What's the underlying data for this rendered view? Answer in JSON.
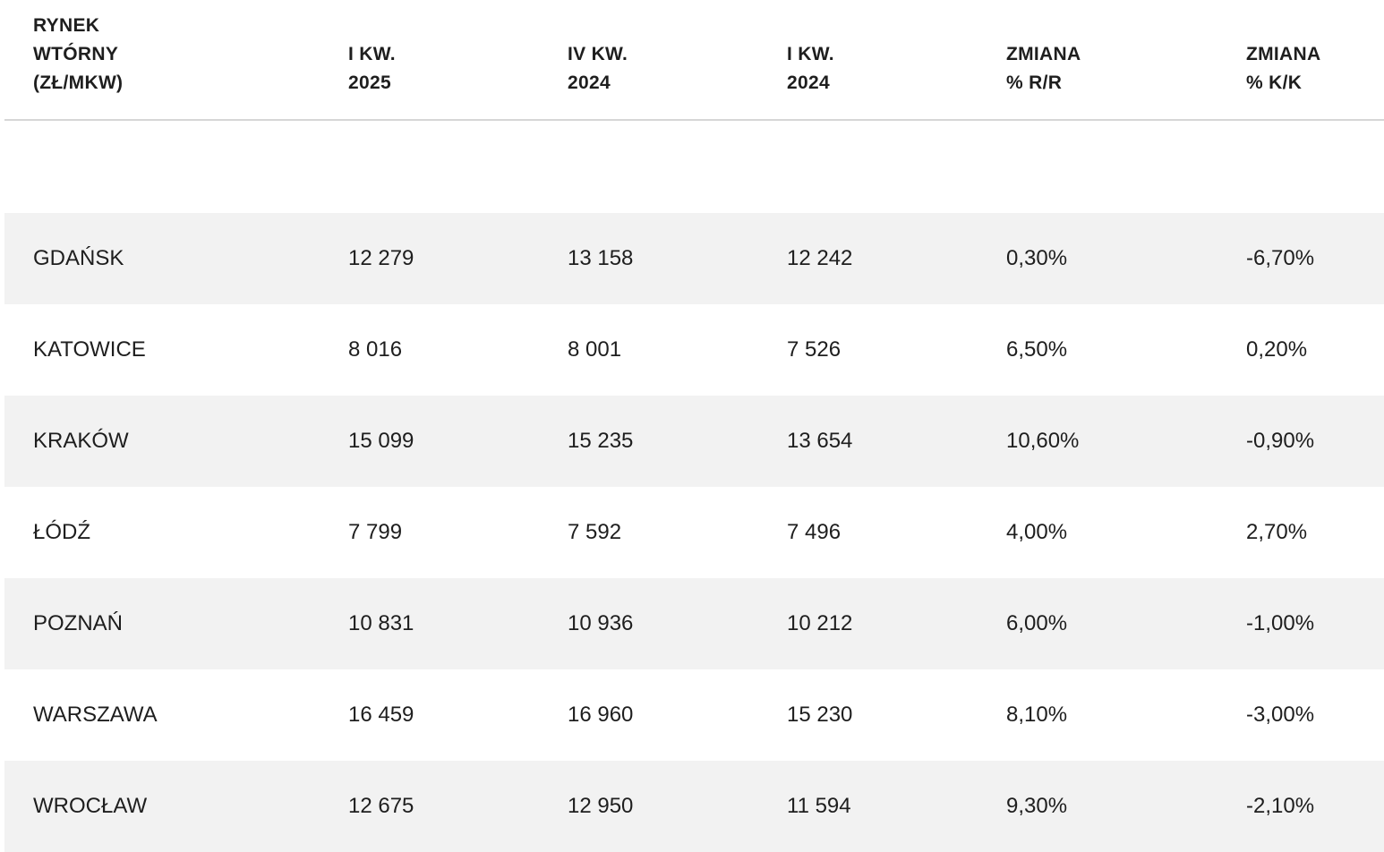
{
  "table": {
    "headers": [
      "RYNEK\nWTÓRNY\n(ZŁ/MKW)",
      "I KW.\n2025",
      "IV KW.\n2024",
      "I KW.\n2024",
      "ZMIANA\n% R/R",
      "ZMIANA\n% K/K"
    ],
    "rows": [
      [
        "GDAŃSK",
        "12 279",
        "13 158",
        "12 242",
        "0,30%",
        "-6,70%"
      ],
      [
        "KATOWICE",
        "8 016",
        "8 001",
        "7 526",
        "6,50%",
        "0,20%"
      ],
      [
        "KRAKÓW",
        "15 099",
        "15 235",
        "13 654",
        "10,60%",
        "-0,90%"
      ],
      [
        "ŁÓDŹ",
        "7 799",
        "7 592",
        "7 496",
        "4,00%",
        "2,70%"
      ],
      [
        "POZNAŃ",
        "10 831",
        "10 936",
        "10 212",
        "6,00%",
        "-1,00%"
      ],
      [
        "WARSZAWA",
        "16 459",
        "16 960",
        "15 230",
        "8,10%",
        "-3,00%"
      ],
      [
        "WROCŁAW",
        "12 675",
        "12 950",
        "11 594",
        "9,30%",
        "-2,10%"
      ]
    ],
    "row_shading_color": "#f2f2f2",
    "divider_color": "#d6d6d6"
  }
}
